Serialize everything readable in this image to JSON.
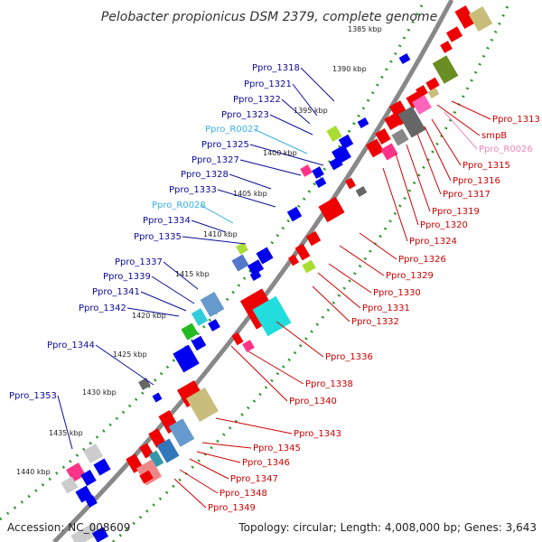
{
  "title": "Pelobacter propionicus DSM 2379, complete genome",
  "accession": "Accession: NC_008609",
  "topology": "Topology: circular; Length: 4,008,000 bp; Genes: 3,643",
  "colors": {
    "backbone": "#888888",
    "forward_gene": "#ee0000",
    "reverse_gene": "#0000ee",
    "rna_left": "#3ab0e6",
    "rna_right": "#ee88bb",
    "left_label": "#0b0b9a",
    "right_label": "#cc0000",
    "tick_dots": "#2a9a2a"
  },
  "scale_ticks": [
    "1385 kbp",
    "1390 kbp",
    "1395 kbp",
    "1400 kbp",
    "1405 kbp",
    "1410 kbp",
    "1415 kbp",
    "1420 kbp",
    "1425 kbp",
    "1430 kbp",
    "1435 kbp",
    "1440 kbp"
  ],
  "left_labels": [
    {
      "text": "Ppro_1318",
      "type": "gene"
    },
    {
      "text": "Ppro_1321",
      "type": "gene"
    },
    {
      "text": "Ppro_1322",
      "type": "gene"
    },
    {
      "text": "Ppro_1323",
      "type": "gene"
    },
    {
      "text": "Ppro_R0027",
      "type": "rna"
    },
    {
      "text": "Ppro_1325",
      "type": "gene"
    },
    {
      "text": "Ppro_1327",
      "type": "gene"
    },
    {
      "text": "Ppro_1328",
      "type": "gene"
    },
    {
      "text": "Ppro_1333",
      "type": "gene"
    },
    {
      "text": "Ppro_R0028",
      "type": "rna"
    },
    {
      "text": "Ppro_1334",
      "type": "gene"
    },
    {
      "text": "Ppro_1335",
      "type": "gene"
    },
    {
      "text": "Ppro_1337",
      "type": "gene"
    },
    {
      "text": "Ppro_1339",
      "type": "gene"
    },
    {
      "text": "Ppro_1341",
      "type": "gene"
    },
    {
      "text": "Ppro_1342",
      "type": "gene"
    },
    {
      "text": "Ppro_1344",
      "type": "gene"
    },
    {
      "text": "Ppro_1353",
      "type": "gene"
    }
  ],
  "right_labels": [
    {
      "text": "Ppro_1313",
      "type": "gene"
    },
    {
      "text": "smpB",
      "type": "gene"
    },
    {
      "text": "Ppro_R0026",
      "type": "rna"
    },
    {
      "text": "Ppro_1315",
      "type": "gene"
    },
    {
      "text": "Ppro_1316",
      "type": "gene"
    },
    {
      "text": "Ppro_1317",
      "type": "gene"
    },
    {
      "text": "Ppro_1319",
      "type": "gene"
    },
    {
      "text": "Ppro_1320",
      "type": "gene"
    },
    {
      "text": "Ppro_1324",
      "type": "gene"
    },
    {
      "text": "Ppro_1326",
      "type": "gene"
    },
    {
      "text": "Ppro_1329",
      "type": "gene"
    },
    {
      "text": "Ppro_1330",
      "type": "gene"
    },
    {
      "text": "Ppro_1331",
      "type": "gene"
    },
    {
      "text": "Ppro_1332",
      "type": "gene"
    },
    {
      "text": "Ppro_1336",
      "type": "gene"
    },
    {
      "text": "Ppro_1338",
      "type": "gene"
    },
    {
      "text": "Ppro_1340",
      "type": "gene"
    },
    {
      "text": "Ppro_1343",
      "type": "gene"
    },
    {
      "text": "Ppro_1345",
      "type": "gene"
    },
    {
      "text": "Ppro_1346",
      "type": "gene"
    },
    {
      "text": "Ppro_1347",
      "type": "gene"
    },
    {
      "text": "Ppro_1348",
      "type": "gene"
    },
    {
      "text": "Ppro_1349",
      "type": "gene"
    }
  ]
}
